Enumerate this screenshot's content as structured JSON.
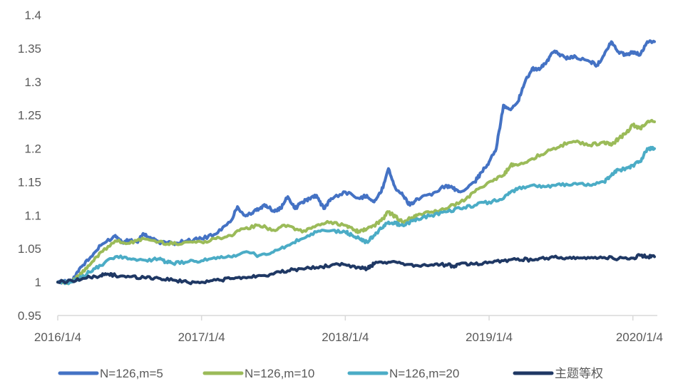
{
  "chart_data": {
    "type": "line",
    "title": "",
    "xlabel": "",
    "ylabel": "",
    "ylim": [
      0.95,
      1.4
    ],
    "yticks": [
      "0.95",
      "1",
      "1.05",
      "1.1",
      "1.15",
      "1.2",
      "1.25",
      "1.3",
      "1.35",
      "1.4"
    ],
    "ytick_values": [
      0.95,
      1.0,
      1.05,
      1.1,
      1.15,
      1.2,
      1.25,
      1.3,
      1.35,
      1.4
    ],
    "xlim": [
      2016.0,
      2020.17
    ],
    "xticks": [
      "2016/1/4",
      "2017/1/4",
      "2018/1/4",
      "2019/1/4",
      "2020/1/4"
    ],
    "xtick_values": [
      2016.0,
      2017.0,
      2018.0,
      2019.0,
      2020.0
    ],
    "legend_position": "bottom",
    "series": [
      {
        "name": "N=126,m=5",
        "color": "#4472C4",
        "x": [
          2016.0,
          2016.1,
          2016.15,
          2016.22,
          2016.3,
          2016.4,
          2016.45,
          2016.5,
          2016.55,
          2016.6,
          2016.65,
          2016.7,
          2016.8,
          2016.9,
          2017.0,
          2017.1,
          2017.2,
          2017.25,
          2017.3,
          2017.35,
          2017.4,
          2017.45,
          2017.5,
          2017.55,
          2017.6,
          2017.65,
          2017.7,
          2017.75,
          2017.8,
          2017.85,
          2017.9,
          2018.0,
          2018.1,
          2018.15,
          2018.2,
          2018.25,
          2018.3,
          2018.35,
          2018.4,
          2018.45,
          2018.5,
          2018.6,
          2018.7,
          2018.75,
          2018.8,
          2018.9,
          2018.95,
          2019.0,
          2019.05,
          2019.1,
          2019.15,
          2019.2,
          2019.25,
          2019.3,
          2019.35,
          2019.4,
          2019.45,
          2019.5,
          2019.55,
          2019.6,
          2019.7,
          2019.75,
          2019.8,
          2019.85,
          2019.9,
          2019.95,
          2020.0,
          2020.05,
          2020.1,
          2020.15
        ],
        "values": [
          1.0,
          1.002,
          1.02,
          1.035,
          1.055,
          1.07,
          1.06,
          1.063,
          1.06,
          1.072,
          1.065,
          1.06,
          1.058,
          1.062,
          1.065,
          1.072,
          1.09,
          1.113,
          1.1,
          1.103,
          1.11,
          1.115,
          1.107,
          1.11,
          1.128,
          1.11,
          1.12,
          1.125,
          1.13,
          1.11,
          1.125,
          1.135,
          1.125,
          1.13,
          1.12,
          1.135,
          1.17,
          1.14,
          1.13,
          1.115,
          1.125,
          1.13,
          1.145,
          1.14,
          1.135,
          1.15,
          1.165,
          1.18,
          1.2,
          1.265,
          1.258,
          1.27,
          1.3,
          1.32,
          1.318,
          1.33,
          1.345,
          1.34,
          1.335,
          1.338,
          1.33,
          1.325,
          1.34,
          1.36,
          1.345,
          1.34,
          1.345,
          1.34,
          1.36,
          1.36
        ]
      },
      {
        "name": "N=126,m=10",
        "color": "#9BBB59",
        "x": [
          2016.0,
          2016.1,
          2016.15,
          2016.22,
          2016.3,
          2016.4,
          2016.5,
          2016.6,
          2016.7,
          2016.8,
          2016.9,
          2017.0,
          2017.1,
          2017.2,
          2017.3,
          2017.4,
          2017.5,
          2017.6,
          2017.7,
          2017.8,
          2017.9,
          2018.0,
          2018.05,
          2018.1,
          2018.15,
          2018.2,
          2018.25,
          2018.3,
          2018.35,
          2018.4,
          2018.45,
          2018.5,
          2018.6,
          2018.7,
          2018.8,
          2018.9,
          2019.0,
          2019.1,
          2019.15,
          2019.2,
          2019.3,
          2019.4,
          2019.5,
          2019.6,
          2019.7,
          2019.8,
          2019.85,
          2019.9,
          2019.95,
          2020.0,
          2020.05,
          2020.1,
          2020.15
        ],
        "values": [
          1.0,
          1.0,
          1.01,
          1.025,
          1.045,
          1.062,
          1.058,
          1.065,
          1.06,
          1.057,
          1.06,
          1.06,
          1.065,
          1.07,
          1.08,
          1.085,
          1.078,
          1.085,
          1.075,
          1.085,
          1.09,
          1.085,
          1.08,
          1.075,
          1.08,
          1.085,
          1.092,
          1.105,
          1.098,
          1.09,
          1.095,
          1.1,
          1.105,
          1.11,
          1.12,
          1.135,
          1.15,
          1.16,
          1.175,
          1.175,
          1.185,
          1.195,
          1.205,
          1.21,
          1.205,
          1.21,
          1.205,
          1.215,
          1.222,
          1.235,
          1.23,
          1.24,
          1.24
        ]
      },
      {
        "name": "N=126,m=20",
        "color": "#4BACC6",
        "x": [
          2016.0,
          2016.1,
          2016.15,
          2016.22,
          2016.3,
          2016.4,
          2016.5,
          2016.6,
          2016.7,
          2016.75,
          2016.8,
          2016.9,
          2017.0,
          2017.1,
          2017.2,
          2017.3,
          2017.4,
          2017.5,
          2017.6,
          2017.7,
          2017.8,
          2017.9,
          2018.0,
          2018.05,
          2018.1,
          2018.15,
          2018.2,
          2018.25,
          2018.3,
          2018.35,
          2018.4,
          2018.45,
          2018.5,
          2018.6,
          2018.7,
          2018.8,
          2018.9,
          2019.0,
          2019.1,
          2019.15,
          2019.2,
          2019.3,
          2019.4,
          2019.5,
          2019.6,
          2019.7,
          2019.8,
          2019.85,
          2019.9,
          2019.95,
          2020.0,
          2020.05,
          2020.1,
          2020.15
        ],
        "values": [
          1.0,
          1.0,
          1.005,
          1.015,
          1.025,
          1.038,
          1.035,
          1.033,
          1.035,
          1.03,
          1.028,
          1.03,
          1.032,
          1.035,
          1.038,
          1.045,
          1.04,
          1.045,
          1.055,
          1.065,
          1.075,
          1.077,
          1.075,
          1.07,
          1.065,
          1.06,
          1.07,
          1.08,
          1.09,
          1.088,
          1.085,
          1.09,
          1.095,
          1.1,
          1.105,
          1.11,
          1.115,
          1.12,
          1.125,
          1.135,
          1.14,
          1.145,
          1.143,
          1.145,
          1.148,
          1.145,
          1.15,
          1.16,
          1.168,
          1.17,
          1.175,
          1.18,
          1.2,
          1.2
        ]
      },
      {
        "name": "主题等权",
        "color": "#1F3864",
        "x": [
          2016.0,
          2016.1,
          2016.2,
          2016.3,
          2016.35,
          2016.4,
          2016.5,
          2016.6,
          2016.7,
          2016.8,
          2016.9,
          2017.0,
          2017.1,
          2017.2,
          2017.3,
          2017.4,
          2017.5,
          2017.6,
          2017.7,
          2017.8,
          2017.9,
          2018.0,
          2018.1,
          2018.15,
          2018.2,
          2018.3,
          2018.4,
          2018.5,
          2018.6,
          2018.7,
          2018.75,
          2018.8,
          2018.9,
          2019.0,
          2019.1,
          2019.2,
          2019.3,
          2019.4,
          2019.5,
          2019.6,
          2019.7,
          2019.8,
          2019.9,
          2020.0,
          2020.05,
          2020.1,
          2020.15
        ],
        "values": [
          1.0,
          1.002,
          1.006,
          1.01,
          1.012,
          1.01,
          1.008,
          1.007,
          1.006,
          1.003,
          1.0,
          1.0,
          1.003,
          1.005,
          1.007,
          1.01,
          1.012,
          1.017,
          1.02,
          1.022,
          1.025,
          1.026,
          1.022,
          1.02,
          1.027,
          1.03,
          1.028,
          1.025,
          1.026,
          1.026,
          1.024,
          1.028,
          1.027,
          1.03,
          1.032,
          1.035,
          1.033,
          1.036,
          1.037,
          1.035,
          1.036,
          1.037,
          1.035,
          1.036,
          1.04,
          1.038,
          1.038
        ]
      }
    ]
  }
}
